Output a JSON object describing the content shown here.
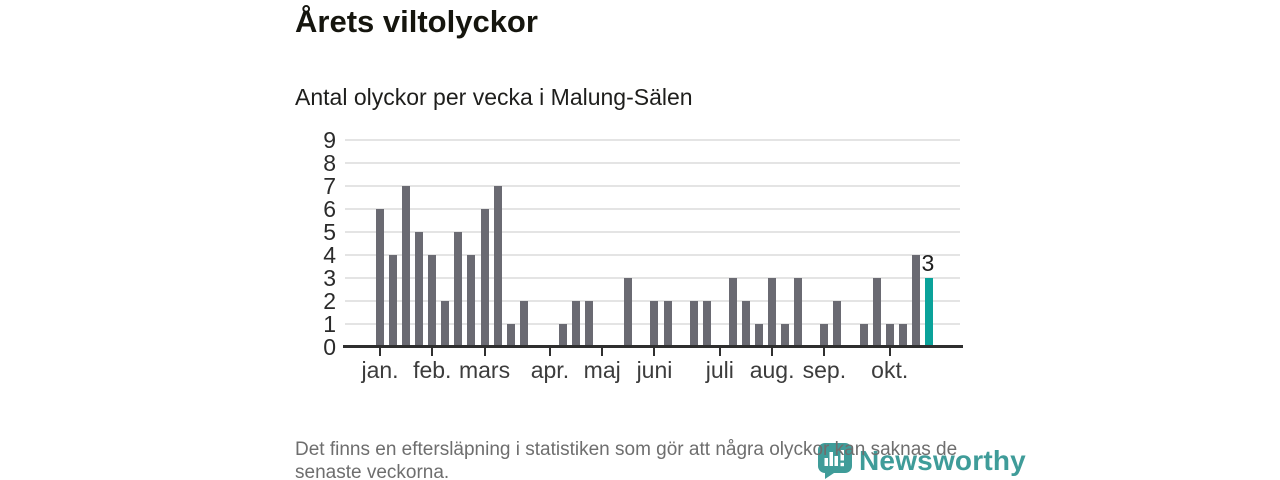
{
  "header": {
    "title": "Årets viltolyckor",
    "subtitle": "Antal olyckor per vecka i Malung-Sälen"
  },
  "chart_data": {
    "type": "bar",
    "title": "Årets viltolyckor",
    "subtitle": "Antal olyckor per vecka i Malung-Sälen",
    "x_unit": "vecka",
    "values": [
      6,
      4,
      7,
      5,
      4,
      2,
      5,
      4,
      6,
      7,
      1,
      2,
      0,
      0,
      1,
      2,
      2,
      0,
      0,
      3,
      0,
      2,
      2,
      0,
      2,
      2,
      0,
      3,
      2,
      1,
      3,
      1,
      3,
      0,
      1,
      2,
      0,
      1,
      3,
      1,
      1,
      4,
      3
    ],
    "highlight_index": 42,
    "highlight_label": "3",
    "month_ticks": [
      {
        "label": "jan.",
        "week": 1
      },
      {
        "label": "feb.",
        "week": 5
      },
      {
        "label": "mars",
        "week": 9
      },
      {
        "label": "apr.",
        "week": 14
      },
      {
        "label": "maj",
        "week": 18
      },
      {
        "label": "juni",
        "week": 22
      },
      {
        "label": "juli",
        "week": 27
      },
      {
        "label": "aug.",
        "week": 31
      },
      {
        "label": "sep.",
        "week": 35
      },
      {
        "label": "okt.",
        "week": 40
      }
    ],
    "yticks": [
      0,
      1,
      2,
      3,
      4,
      5,
      6,
      7,
      8,
      9
    ],
    "ylim": [
      0,
      9
    ],
    "grid": true,
    "legend": "none",
    "colors": {
      "bar": "#6a6a72",
      "highlight": "#0aa29a",
      "gridline": "#e4e4e4",
      "axis": "#2f2f2f"
    }
  },
  "footer": {
    "note_lines": [
      "Det finns en eftersläpning i statistiken som gör att några olyckor kan saknas de",
      "senaste veckorna."
    ],
    "logo_text": "Newsworthy",
    "logo_color": "#3f9c99"
  }
}
